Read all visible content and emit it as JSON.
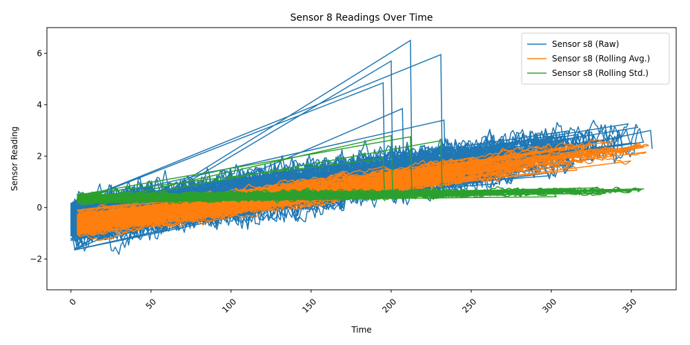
{
  "chart_data": {
    "type": "line",
    "title": "Sensor 8 Readings Over Time",
    "xlabel": "Time",
    "ylabel": "Sensor Reading",
    "xlim": [
      -15,
      378
    ],
    "ylim": [
      -3.2,
      7.0
    ],
    "x_ticks": [
      0,
      50,
      100,
      150,
      200,
      250,
      300,
      350
    ],
    "y_ticks": [
      -2,
      0,
      2,
      4,
      6
    ],
    "x_tick_rotation": 45,
    "grid": false,
    "legend": {
      "position": "top-right"
    },
    "series": [
      {
        "name": "Sensor s8 (Raw)",
        "color": "#1f77b4",
        "description": "Many overlapping noisy runs; each run starts near x=0 and ends at a different max time; spikes mark wrap-around to next run",
        "trend_start": [
          0,
          -0.5
        ],
        "trend_end": [
          362,
          2.8
        ],
        "band_halfwidth": 1.3,
        "spike_points": [
          [
            212,
            6.5
          ],
          [
            231,
            5.95
          ],
          [
            200,
            5.7
          ],
          [
            195,
            4.85
          ],
          [
            207,
            3.85
          ],
          [
            233,
            3.4
          ],
          [
            313,
            2.7
          ],
          [
            333,
            2.6
          ],
          [
            362,
            3.0
          ]
        ]
      },
      {
        "name": "Sensor s8 (Rolling Avg.)",
        "color": "#ff7f0e",
        "trend_start": [
          4,
          -0.6
        ],
        "trend_end": [
          362,
          2.55
        ],
        "band_halfwidth": 0.9
      },
      {
        "name": "Sensor s8 (Rolling Std.)",
        "color": "#2ca02c",
        "trend_start": [
          4,
          0.35
        ],
        "trend_end": [
          362,
          0.65
        ],
        "band_halfwidth": 0.3,
        "spike_points": [
          [
            200,
            2.8
          ],
          [
            212,
            2.75
          ],
          [
            231,
            2.6
          ],
          [
            195,
            1.9
          ]
        ]
      }
    ]
  }
}
